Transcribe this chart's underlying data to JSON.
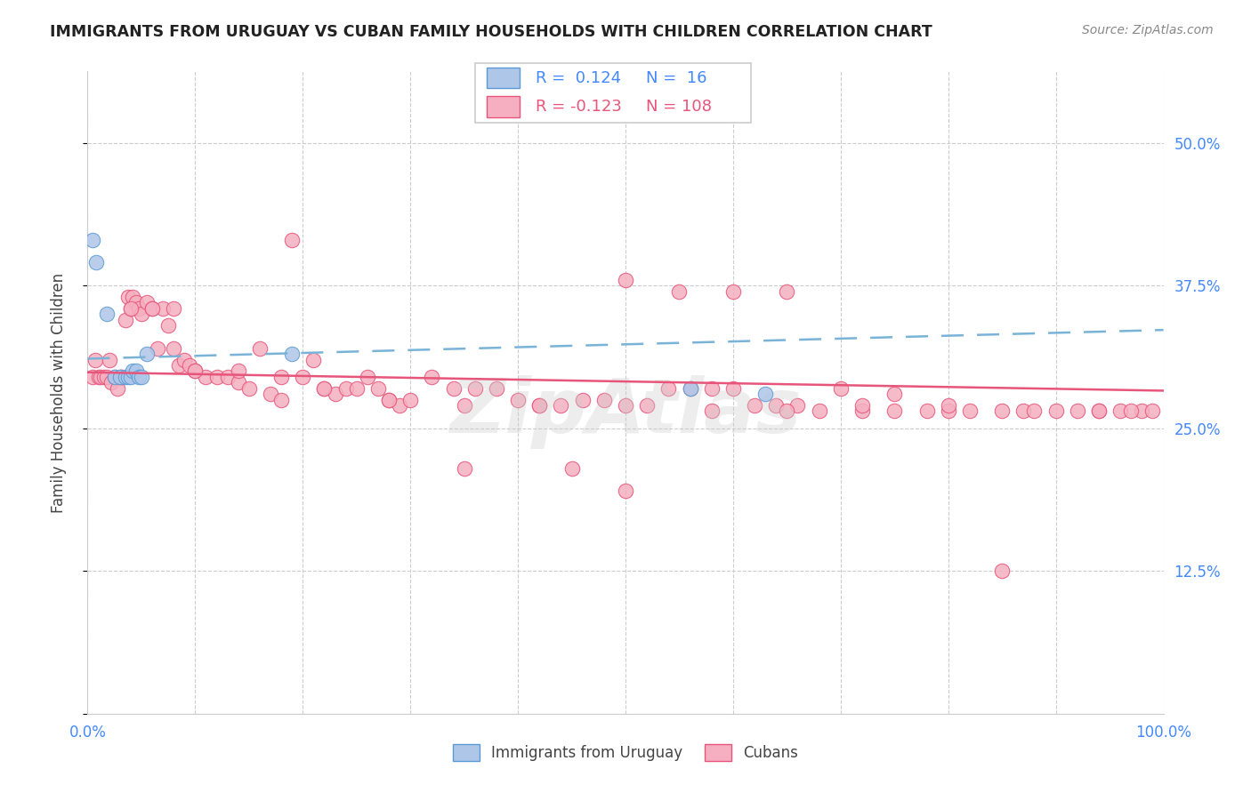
{
  "title": "IMMIGRANTS FROM URUGUAY VS CUBAN FAMILY HOUSEHOLDS WITH CHILDREN CORRELATION CHART",
  "source": "Source: ZipAtlas.com",
  "ylabel": "Family Households with Children",
  "xlim": [
    0,
    1
  ],
  "ylim": [
    0,
    0.5625
  ],
  "blue_R": 0.124,
  "blue_N": 16,
  "pink_R": -0.123,
  "pink_N": 108,
  "blue_color": "#aec6e8",
  "pink_color": "#f5afc0",
  "blue_edge_color": "#5b9bd5",
  "pink_edge_color": "#e8557a",
  "blue_line_color": "#7ab3d8",
  "pink_line_color": "#e8557a",
  "legend_label_blue": "Immigrants from Uruguay",
  "legend_label_pink": "Cubans",
  "blue_x": [
    0.005,
    0.008,
    0.018,
    0.025,
    0.03,
    0.035,
    0.038,
    0.04,
    0.042,
    0.045,
    0.048,
    0.05,
    0.055,
    0.19,
    0.56,
    0.63
  ],
  "blue_y": [
    0.415,
    0.395,
    0.35,
    0.295,
    0.295,
    0.295,
    0.295,
    0.295,
    0.3,
    0.3,
    0.295,
    0.295,
    0.315,
    0.315,
    0.285,
    0.28
  ],
  "pink_x": [
    0.005,
    0.007,
    0.01,
    0.012,
    0.015,
    0.018,
    0.02,
    0.022,
    0.025,
    0.028,
    0.03,
    0.032,
    0.035,
    0.038,
    0.04,
    0.042,
    0.045,
    0.048,
    0.05,
    0.055,
    0.06,
    0.065,
    0.07,
    0.075,
    0.08,
    0.085,
    0.09,
    0.095,
    0.1,
    0.11,
    0.12,
    0.13,
    0.14,
    0.15,
    0.16,
    0.17,
    0.18,
    0.19,
    0.2,
    0.21,
    0.22,
    0.23,
    0.24,
    0.25,
    0.26,
    0.27,
    0.28,
    0.29,
    0.3,
    0.32,
    0.34,
    0.36,
    0.38,
    0.4,
    0.42,
    0.44,
    0.46,
    0.48,
    0.5,
    0.52,
    0.54,
    0.56,
    0.58,
    0.6,
    0.62,
    0.64,
    0.66,
    0.68,
    0.7,
    0.72,
    0.75,
    0.78,
    0.8,
    0.82,
    0.85,
    0.87,
    0.9,
    0.92,
    0.94,
    0.96,
    0.98,
    0.04,
    0.06,
    0.08,
    0.1,
    0.14,
    0.18,
    0.22,
    0.28,
    0.35,
    0.42,
    0.5,
    0.58,
    0.65,
    0.72,
    0.8,
    0.88,
    0.94,
    0.97,
    0.99,
    0.5,
    0.55,
    0.6,
    0.35,
    0.45,
    0.65,
    0.75,
    0.85
  ],
  "pink_y": [
    0.295,
    0.31,
    0.295,
    0.295,
    0.295,
    0.295,
    0.31,
    0.29,
    0.295,
    0.285,
    0.295,
    0.295,
    0.345,
    0.365,
    0.355,
    0.365,
    0.36,
    0.355,
    0.35,
    0.36,
    0.355,
    0.32,
    0.355,
    0.34,
    0.32,
    0.305,
    0.31,
    0.305,
    0.3,
    0.295,
    0.295,
    0.295,
    0.29,
    0.285,
    0.32,
    0.28,
    0.275,
    0.415,
    0.295,
    0.31,
    0.285,
    0.28,
    0.285,
    0.285,
    0.295,
    0.285,
    0.275,
    0.27,
    0.275,
    0.295,
    0.285,
    0.285,
    0.285,
    0.275,
    0.27,
    0.27,
    0.275,
    0.275,
    0.195,
    0.27,
    0.285,
    0.285,
    0.285,
    0.285,
    0.27,
    0.27,
    0.27,
    0.265,
    0.285,
    0.265,
    0.265,
    0.265,
    0.265,
    0.265,
    0.265,
    0.265,
    0.265,
    0.265,
    0.265,
    0.265,
    0.265,
    0.355,
    0.355,
    0.355,
    0.3,
    0.3,
    0.295,
    0.285,
    0.275,
    0.27,
    0.27,
    0.27,
    0.265,
    0.265,
    0.27,
    0.27,
    0.265,
    0.265,
    0.265,
    0.265,
    0.38,
    0.37,
    0.37,
    0.215,
    0.215,
    0.37,
    0.28,
    0.125
  ]
}
